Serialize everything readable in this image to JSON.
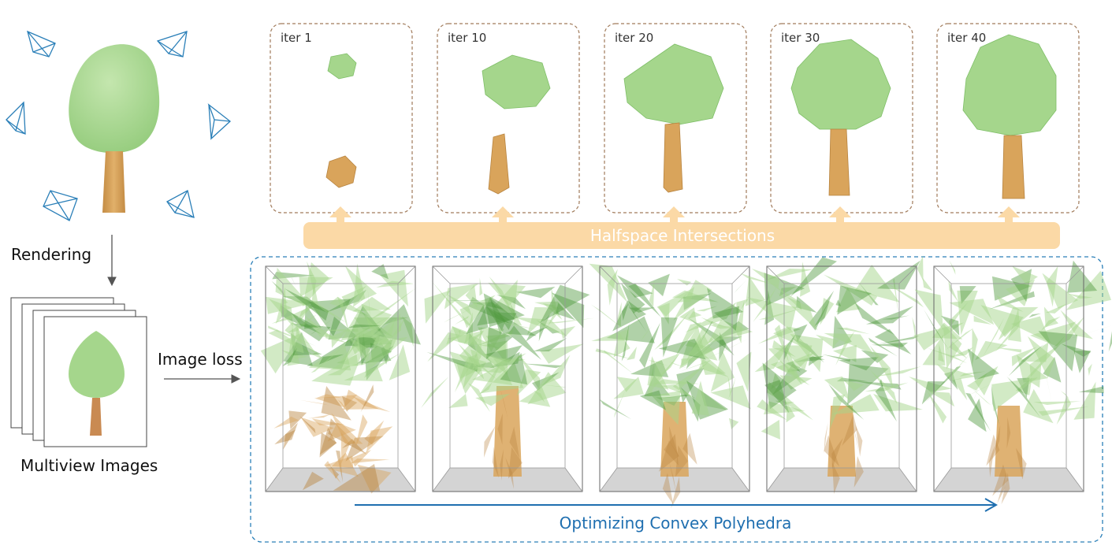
{
  "labels": {
    "rendering": "Rendering",
    "image_loss": "Image loss",
    "multiview_images": "Multiview Images",
    "halfspace": "Halfspace Intersections",
    "optimizing": "Optimizing Convex Polyhedra"
  },
  "iterations": [
    {
      "label": "iter 1"
    },
    {
      "label": "iter 10"
    },
    {
      "label": "iter 20"
    },
    {
      "label": "iter 30"
    },
    {
      "label": "iter 40"
    }
  ],
  "colors": {
    "foliage": "#a5d68c",
    "foliage_dark": "#6fb25a",
    "trunk": "#d9a45b",
    "trunk_dark": "#b88440",
    "camera": "#2a7fb8",
    "halfspace_bar": "#fbd9a6",
    "dash_box": "#a07a5a",
    "opt_box": "#2a7fb8",
    "opt_arrow": "#1f6fb0"
  }
}
